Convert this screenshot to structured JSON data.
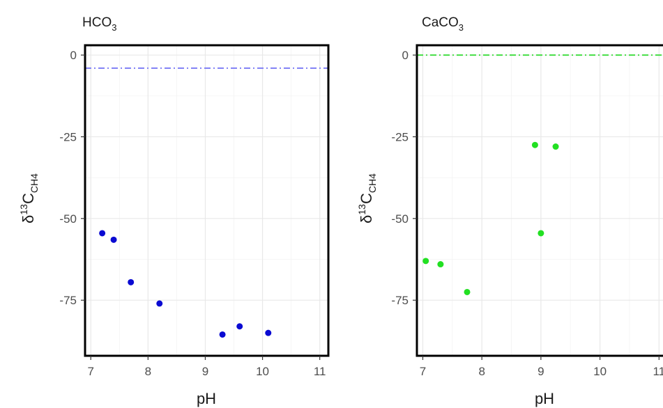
{
  "chart_data": [
    {
      "type": "scatter",
      "title_base": "HCO",
      "title_sub": "3",
      "xlabel": "pH",
      "ylabel_delta": "δ",
      "ylabel_sup": "13",
      "ylabel_main": "C",
      "ylabel_sub": "CH4",
      "xlim": [
        6.9,
        11.15
      ],
      "ylim": [
        -92,
        3
      ],
      "xticks": [
        7,
        8,
        9,
        10,
        11
      ],
      "yticks": [
        0,
        -25,
        -50,
        -75
      ],
      "grid": true,
      "point_color": "#0a0ad2",
      "reference_line": {
        "y": -4,
        "color": "#7f7ff5",
        "style": "dash-dot"
      },
      "points": [
        {
          "x": 7.2,
          "y": -54.5
        },
        {
          "x": 7.4,
          "y": -56.5
        },
        {
          "x": 7.7,
          "y": -69.5
        },
        {
          "x": 8.2,
          "y": -76
        },
        {
          "x": 9.3,
          "y": -85.5
        },
        {
          "x": 9.6,
          "y": -83
        },
        {
          "x": 10.1,
          "y": -85
        }
      ]
    },
    {
      "type": "scatter",
      "title_base": "CaCO",
      "title_sub": "3",
      "xlabel": "pH",
      "ylabel_delta": "δ",
      "ylabel_sup": "13",
      "ylabel_main": "C",
      "ylabel_sub": "CH4",
      "xlim": [
        6.9,
        11.15
      ],
      "ylim": [
        -92,
        3
      ],
      "xticks": [
        7,
        8,
        9,
        10,
        11
      ],
      "yticks": [
        0,
        -25,
        -50,
        -75
      ],
      "grid": true,
      "point_color": "#22e022",
      "reference_line": {
        "y": 0,
        "color": "#44dd44",
        "style": "dash-dot"
      },
      "points": [
        {
          "x": 7.05,
          "y": -63
        },
        {
          "x": 7.3,
          "y": -64
        },
        {
          "x": 7.75,
          "y": -72.5
        },
        {
          "x": 8.9,
          "y": -27.5
        },
        {
          "x": 9.0,
          "y": -54.5
        },
        {
          "x": 9.25,
          "y": -28
        }
      ]
    }
  ]
}
